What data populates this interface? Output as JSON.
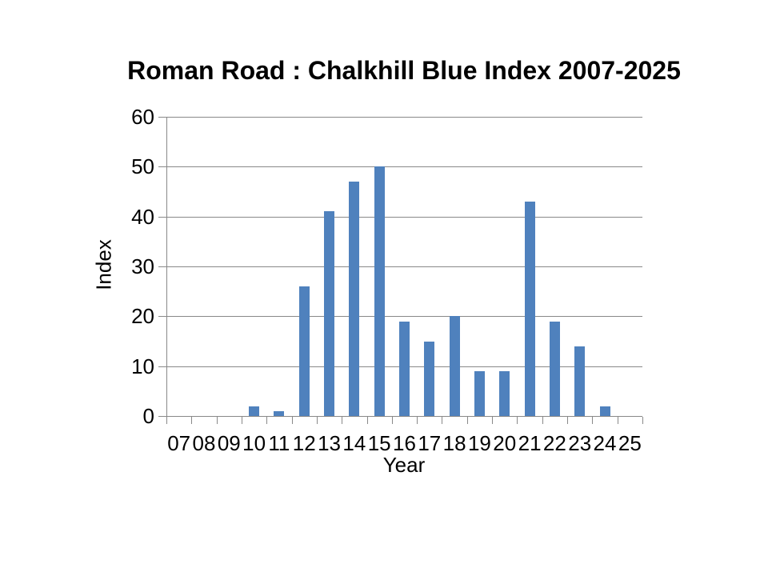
{
  "chart_data": {
    "type": "bar",
    "title": "Roman Road : Chalkhill Blue Index 2007-2025",
    "xlabel": "Year",
    "ylabel": "Index",
    "categories": [
      "07",
      "08",
      "09",
      "10",
      "11",
      "12",
      "13",
      "14",
      "15",
      "16",
      "17",
      "18",
      "19",
      "20",
      "21",
      "22",
      "23",
      "24",
      "25"
    ],
    "values": [
      0,
      0,
      0,
      2,
      1,
      26,
      41,
      47,
      50,
      19,
      15,
      20,
      9,
      9,
      43,
      19,
      14,
      2,
      0
    ],
    "ylim": [
      0,
      60
    ],
    "ytick_step": 10,
    "ytick_labels": [
      "0",
      "10",
      "20",
      "30",
      "40",
      "50",
      "60"
    ],
    "grid": true,
    "legend": false,
    "bar_color": "#4F81BD",
    "grid_color": "#898989",
    "axis_color": "#898989",
    "text_color": "#000000",
    "background_color": "#FFFFFF"
  }
}
